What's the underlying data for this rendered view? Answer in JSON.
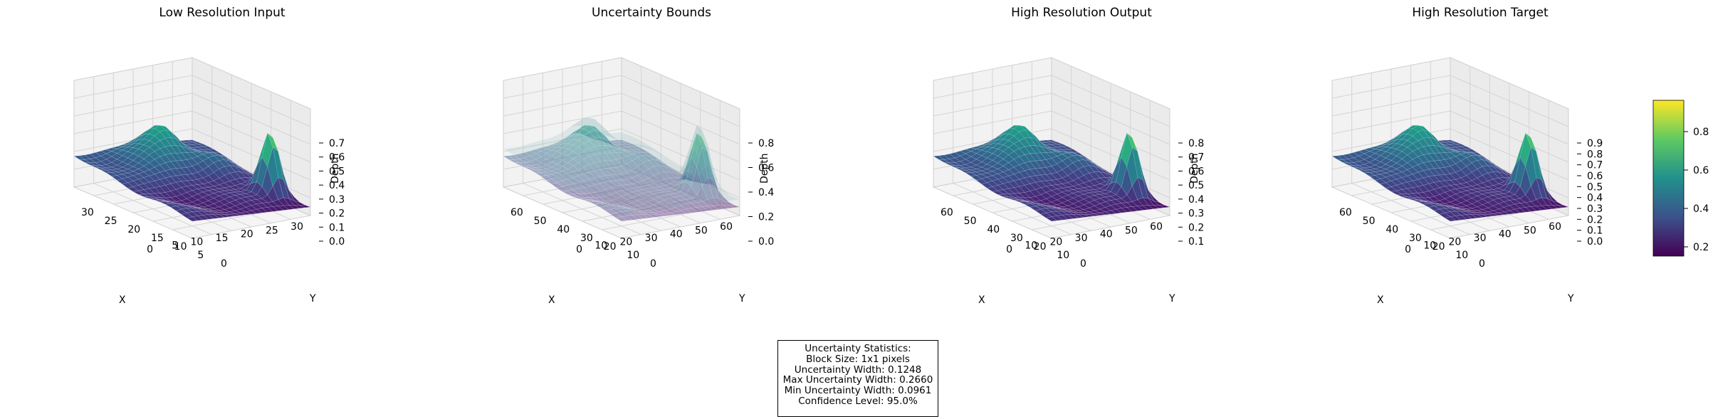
{
  "figure": {
    "panels": [
      {
        "title": "Low Resolution Input",
        "xlabel": "X",
        "ylabel": "Y",
        "zlabel": "Depth",
        "x_ticks": [
          "30",
          "25",
          "20",
          "15",
          "10",
          "5",
          "0"
        ],
        "y_ticks": [
          "30",
          "25",
          "20",
          "15",
          "10",
          "5",
          "0"
        ],
        "z_ticks": [
          "0.0",
          "0.1",
          "0.2",
          "0.3",
          "0.4",
          "0.5",
          "0.6",
          "0.7"
        ]
      },
      {
        "title": "Uncertainty Bounds",
        "xlabel": "X",
        "ylabel": "Y",
        "zlabel": "Depth",
        "x_ticks": [
          "60",
          "50",
          "40",
          "30",
          "20",
          "10",
          "0"
        ],
        "y_ticks": [
          "60",
          "50",
          "40",
          "30",
          "20",
          "10",
          "0"
        ],
        "z_ticks": [
          "0.0",
          "0.2",
          "0.4",
          "0.6",
          "0.8"
        ]
      },
      {
        "title": "High Resolution Output",
        "xlabel": "X",
        "ylabel": "Y",
        "zlabel": "Depth",
        "x_ticks": [
          "60",
          "50",
          "40",
          "30",
          "20",
          "10",
          "0"
        ],
        "y_ticks": [
          "60",
          "50",
          "40",
          "30",
          "20",
          "10",
          "0"
        ],
        "z_ticks": [
          "0.1",
          "0.2",
          "0.3",
          "0.4",
          "0.5",
          "0.6",
          "0.7",
          "0.8"
        ]
      },
      {
        "title": "High Resolution Target",
        "xlabel": "X",
        "ylabel": "Y",
        "zlabel": "",
        "x_ticks": [
          "60",
          "50",
          "40",
          "30",
          "20",
          "10",
          "0"
        ],
        "y_ticks": [
          "60",
          "50",
          "40",
          "30",
          "20",
          "10",
          "0"
        ],
        "z_ticks": [
          "0.0",
          "0.1",
          "0.2",
          "0.3",
          "0.4",
          "0.5",
          "0.6",
          "0.7",
          "0.8",
          "0.9"
        ]
      }
    ],
    "colorbar": {
      "ticks": [
        "0.2",
        "0.4",
        "0.6",
        "0.8"
      ],
      "colormap": "viridis"
    },
    "stats": {
      "heading": "Uncertainty Statistics:",
      "block_size": "Block Size: 1x1 pixels",
      "width": "Uncertainty Width: 0.1248",
      "max_width": "Max Uncertainty Width: 0.2660",
      "min_width": "Min Uncertainty Width: 0.0961",
      "confidence": "Confidence Level: 95.0%"
    }
  },
  "chart_data": [
    {
      "type": "surface",
      "title": "Low Resolution Input",
      "xlabel": "X",
      "ylabel": "Y",
      "zlabel": "Depth",
      "xlim": [
        0,
        31
      ],
      "ylim": [
        0,
        31
      ],
      "zlim": [
        0.0,
        0.75
      ],
      "grid": true,
      "colormap": "viridis",
      "z_peak": 0.75
    },
    {
      "type": "surface",
      "title": "Uncertainty Bounds",
      "xlabel": "X",
      "ylabel": "Y",
      "zlabel": "Depth",
      "xlim": [
        0,
        63
      ],
      "ylim": [
        0,
        63
      ],
      "zlim": [
        0.0,
        0.9
      ],
      "grid": true,
      "colormap": "viridis",
      "transparent_bounds": true
    },
    {
      "type": "surface",
      "title": "High Resolution Output",
      "xlabel": "X",
      "ylabel": "Y",
      "zlabel": "Depth",
      "xlim": [
        0,
        63
      ],
      "ylim": [
        0,
        63
      ],
      "zlim": [
        0.05,
        0.85
      ],
      "grid": true,
      "colormap": "viridis"
    },
    {
      "type": "surface",
      "title": "High Resolution Target",
      "xlabel": "X",
      "ylabel": "Y",
      "xlim": [
        0,
        63
      ],
      "ylim": [
        0,
        63
      ],
      "zlim": [
        0.0,
        0.92
      ],
      "grid": true,
      "colormap": "viridis"
    }
  ]
}
